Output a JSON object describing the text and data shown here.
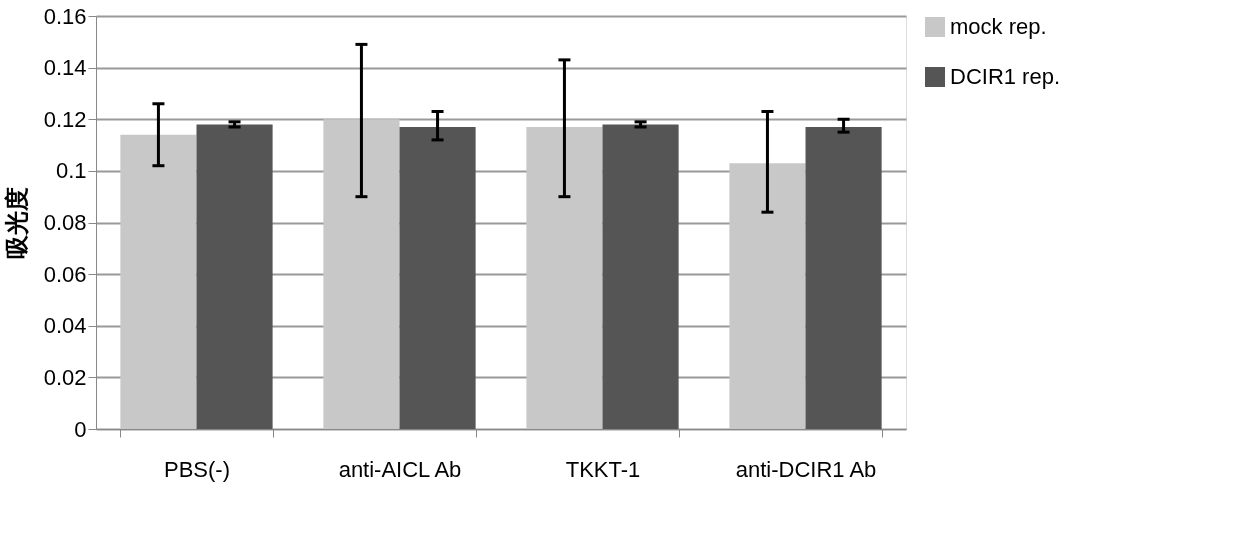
{
  "chart_data": {
    "type": "bar",
    "ylabel": "吸光度",
    "categories": [
      "PBS(-)",
      "anti-AICL Ab",
      "TKKT-1",
      "anti-DCIR1 Ab"
    ],
    "series": [
      {
        "name": "mock rep.",
        "color": "#c8c8c8",
        "values": [
          0.114,
          0.12,
          0.117,
          0.103
        ],
        "errors": [
          [
            0.102,
            0.126
          ],
          [
            0.09,
            0.149
          ],
          [
            0.09,
            0.143
          ],
          [
            0.084,
            0.123
          ]
        ]
      },
      {
        "name": "DCIR1 rep.",
        "color": "#555555",
        "values": [
          0.118,
          0.117,
          0.118,
          0.117
        ],
        "errors": [
          [
            0.117,
            0.119
          ],
          [
            0.112,
            0.123
          ],
          [
            0.117,
            0.119
          ],
          [
            0.115,
            0.12
          ]
        ]
      }
    ],
    "ylim": [
      0,
      0.16
    ],
    "yticks": [
      0,
      0.02,
      0.04,
      0.06,
      0.08,
      0.1,
      0.12,
      0.14,
      0.16
    ],
    "grid": "y",
    "legend": "right"
  }
}
